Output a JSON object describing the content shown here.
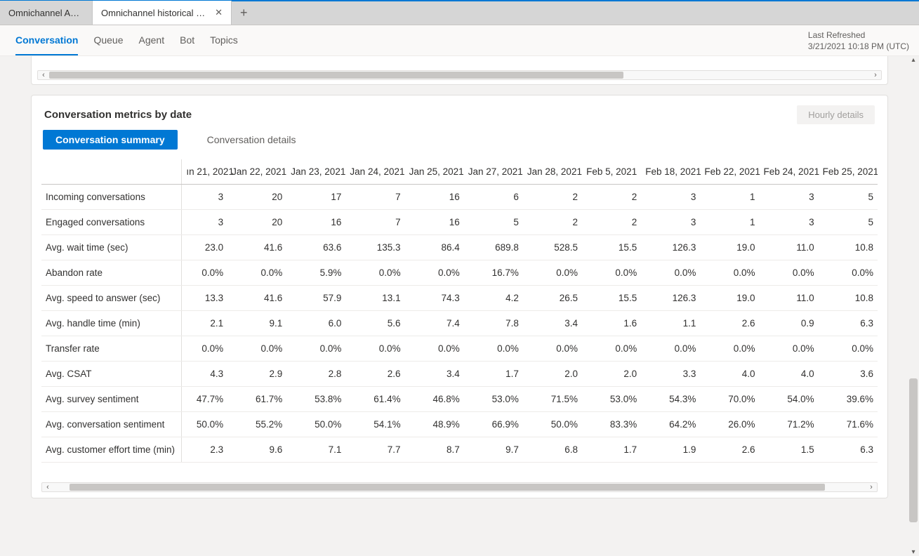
{
  "colors": {
    "accent": "#0078d4",
    "tabstrip_bg": "#d6d6d6",
    "page_bg": "#f3f2f1",
    "card_bg": "#ffffff",
    "border": "#e1dfdd",
    "text_primary": "#323130",
    "text_secondary": "#605e5c",
    "scroll_thumb": "#c8c6c4"
  },
  "tabs": {
    "inactive": {
      "label": "Omnichannel Age..."
    },
    "active": {
      "label": "Omnichannel historical an..."
    }
  },
  "nav": {
    "items": [
      {
        "label": "Conversation",
        "active": true
      },
      {
        "label": "Queue",
        "active": false
      },
      {
        "label": "Agent",
        "active": false
      },
      {
        "label": "Bot",
        "active": false
      },
      {
        "label": "Topics",
        "active": false
      }
    ]
  },
  "last_refreshed": {
    "label": "Last Refreshed",
    "value": "3/21/2021 10:18 PM (UTC)"
  },
  "card": {
    "title": "Conversation metrics by date",
    "hourly_button": "Hourly details",
    "pills": {
      "summary": "Conversation summary",
      "details": "Conversation details"
    }
  },
  "table": {
    "first_col_truncated_header": "ın 21, 2021",
    "date_columns": [
      "Jan 22, 2021",
      "Jan 23, 2021",
      "Jan 24, 2021",
      "Jan 25, 2021",
      "Jan 27, 2021",
      "Jan 28, 2021",
      "Feb 5, 2021",
      "Feb 18, 2021",
      "Feb 22, 2021",
      "Feb 24, 2021",
      "Feb 25, 2021"
    ],
    "rows": [
      {
        "label": "Incoming conversations",
        "first": "3",
        "values": [
          "20",
          "17",
          "7",
          "16",
          "6",
          "2",
          "2",
          "3",
          "1",
          "3",
          "5"
        ]
      },
      {
        "label": "Engaged conversations",
        "first": "3",
        "values": [
          "20",
          "16",
          "7",
          "16",
          "5",
          "2",
          "2",
          "3",
          "1",
          "3",
          "5"
        ]
      },
      {
        "label": "Avg. wait time (sec)",
        "first": "23.0",
        "values": [
          "41.6",
          "63.6",
          "135.3",
          "86.4",
          "689.8",
          "528.5",
          "15.5",
          "126.3",
          "19.0",
          "11.0",
          "10.8"
        ]
      },
      {
        "label": "Abandon rate",
        "first": "0.0%",
        "values": [
          "0.0%",
          "5.9%",
          "0.0%",
          "0.0%",
          "16.7%",
          "0.0%",
          "0.0%",
          "0.0%",
          "0.0%",
          "0.0%",
          "0.0%"
        ]
      },
      {
        "label": "Avg. speed to answer (sec)",
        "first": "13.3",
        "values": [
          "41.6",
          "57.9",
          "13.1",
          "74.3",
          "4.2",
          "26.5",
          "15.5",
          "126.3",
          "19.0",
          "11.0",
          "10.8"
        ]
      },
      {
        "label": "Avg. handle time (min)",
        "first": "2.1",
        "values": [
          "9.1",
          "6.0",
          "5.6",
          "7.4",
          "7.8",
          "3.4",
          "1.6",
          "1.1",
          "2.6",
          "0.9",
          "6.3"
        ]
      },
      {
        "label": "Transfer rate",
        "first": "0.0%",
        "values": [
          "0.0%",
          "0.0%",
          "0.0%",
          "0.0%",
          "0.0%",
          "0.0%",
          "0.0%",
          "0.0%",
          "0.0%",
          "0.0%",
          "0.0%"
        ]
      },
      {
        "label": "Avg. CSAT",
        "first": "4.3",
        "values": [
          "2.9",
          "2.8",
          "2.6",
          "3.4",
          "1.7",
          "2.0",
          "2.0",
          "3.3",
          "4.0",
          "4.0",
          "3.6"
        ]
      },
      {
        "label": "Avg. survey sentiment",
        "first": "47.7%",
        "values": [
          "61.7%",
          "53.8%",
          "61.4%",
          "46.8%",
          "53.0%",
          "71.5%",
          "53.0%",
          "54.3%",
          "70.0%",
          "54.0%",
          "39.6%"
        ]
      },
      {
        "label": "Avg. conversation sentiment",
        "first": "50.0%",
        "values": [
          "55.2%",
          "50.0%",
          "54.1%",
          "48.9%",
          "66.9%",
          "50.0%",
          "83.3%",
          "64.2%",
          "26.0%",
          "71.2%",
          "71.6%"
        ]
      },
      {
        "label": "Avg. customer effort time (min)",
        "first": "2.3",
        "values": [
          "9.6",
          "7.1",
          "7.7",
          "8.7",
          "9.7",
          "6.8",
          "1.7",
          "1.9",
          "2.6",
          "1.5",
          "6.3"
        ]
      }
    ]
  },
  "scroll": {
    "upper_thumb_left_pct": 0,
    "upper_thumb_width_pct": 70,
    "lower_thumb_left_pct": 2,
    "lower_thumb_width_pct": 93,
    "v_thumb_top_pct": 65,
    "v_thumb_height_pct": 30
  }
}
